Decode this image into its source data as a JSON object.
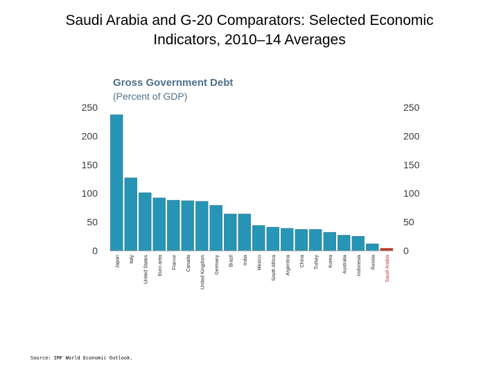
{
  "slide": {
    "title_line1": "Saudi Arabia and G-20 Comparators: Selected Economic",
    "title_line2": "Indicators, 2010–14 Averages"
  },
  "source": "Source: IMF World Economic Outlook.",
  "colors": {
    "bar": "#2795b5",
    "bar_dark": "#1d6f89",
    "highlight": "#c0392b",
    "panel_title": "#4d6f8a",
    "axis_text": "#3a3a3a"
  },
  "chart_data": {
    "type": "bar",
    "title": "Gross Government Debt",
    "subtitle": "(Percent of GDP)",
    "categories": [
      "Japan",
      "Italy",
      "United States",
      "Euro area",
      "France",
      "Canada",
      "United Kingdom",
      "Germany",
      "Brazil",
      "India",
      "Mexico",
      "South Africa",
      "Argentina",
      "China",
      "Turkey",
      "Korea",
      "Australia",
      "Indonesia",
      "Russia",
      "Saudi Arabia"
    ],
    "values": [
      237,
      127,
      101,
      92,
      88,
      87,
      86,
      79,
      64,
      64,
      44,
      41,
      39,
      37,
      37,
      32,
      27,
      25,
      12,
      4
    ],
    "highlight": "Saudi Arabia",
    "ylim": [
      0,
      250
    ],
    "yticks": [
      0,
      50,
      100,
      150,
      200,
      250
    ],
    "grid": false,
    "legend": "none"
  }
}
